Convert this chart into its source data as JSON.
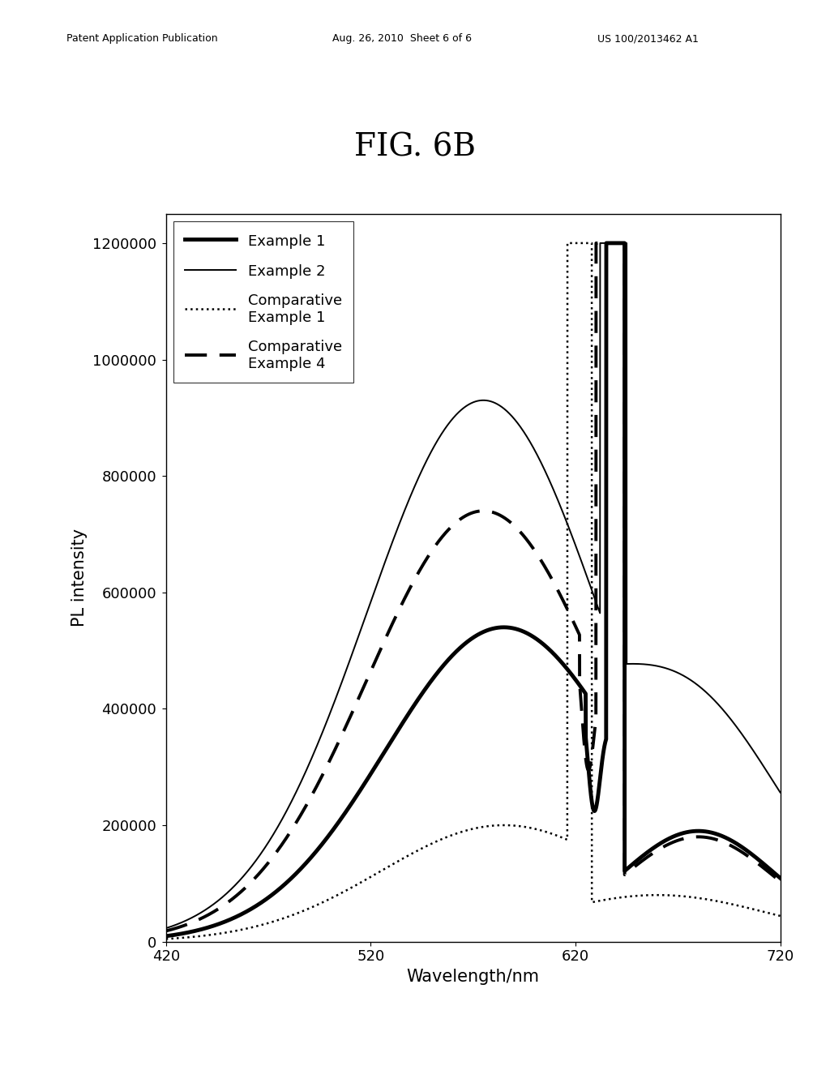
{
  "title": "FIG. 6B",
  "xlabel": "Wavelength/nm",
  "ylabel": "PL intensity",
  "xlim": [
    420,
    720
  ],
  "ylim": [
    0,
    1250000
  ],
  "xticks": [
    420,
    520,
    620,
    720
  ],
  "yticks": [
    0,
    200000,
    400000,
    600000,
    800000,
    1000000,
    1200000
  ],
  "ytick_labels": [
    "0",
    "200000",
    "400000",
    "600000",
    "800000",
    "1000000",
    "1200000"
  ],
  "background_color": "#ffffff",
  "title_fontsize": 28,
  "axis_label_fontsize": 15,
  "tick_fontsize": 13,
  "legend_fontsize": 13,
  "header_left": "Patent Application Publication",
  "header_mid": "Aug. 26, 2010  Sheet 6 of 6",
  "header_right": "US 100/2013462 A1"
}
